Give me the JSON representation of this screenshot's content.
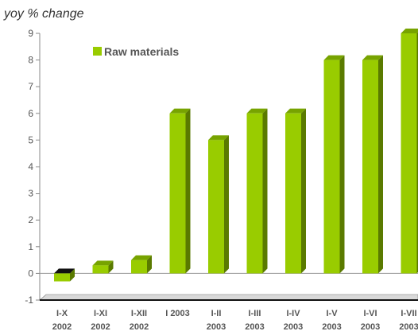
{
  "chart_data": {
    "type": "bar",
    "ylabel": "yoy % change",
    "xlabel": "",
    "title": "",
    "categories": [
      [
        "I-X",
        "2002"
      ],
      [
        "I-XI",
        "2002"
      ],
      [
        "I-XII",
        "2002"
      ],
      [
        "I 2003",
        ""
      ],
      [
        "I-II",
        "2003"
      ],
      [
        "I-III",
        "2003"
      ],
      [
        "I-IV",
        "2003"
      ],
      [
        "I-V",
        "2003"
      ],
      [
        "I-VI",
        "2003"
      ],
      [
        "I-VII",
        "2003"
      ]
    ],
    "series": [
      {
        "name": "Raw materials",
        "values": [
          -0.3,
          0.3,
          0.5,
          6,
          5,
          6,
          6,
          8,
          8,
          9
        ],
        "color": "#99cc00"
      }
    ],
    "ylim": [
      -1,
      9
    ],
    "yticks": [
      "-1",
      "0",
      "1",
      "2",
      "3",
      "4",
      "5",
      "6",
      "7",
      "8",
      "9"
    ],
    "legend_position": "top-left",
    "grid": false,
    "colors": {
      "bar_front": "#99cc00",
      "bar_side": "#5a7a00",
      "bar_top": "#77a300",
      "negative_top": "#111111",
      "axis": "#888888"
    }
  }
}
